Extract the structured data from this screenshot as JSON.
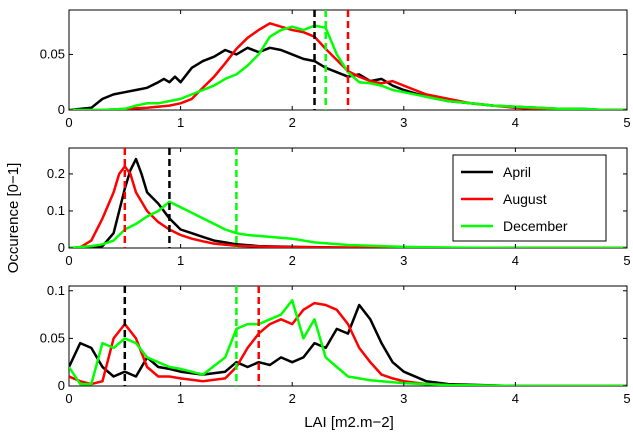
{
  "figure": {
    "xlabel": "LAI [m2.m−2]",
    "ylabel": "Occurence [0−1]"
  },
  "legend": {
    "placement": "right of middle panel",
    "items": [
      {
        "label": "April",
        "color": "#000000"
      },
      {
        "label": "August",
        "color": "#ff0000"
      },
      {
        "label": "December",
        "color": "#00ff00"
      }
    ]
  },
  "chart_data": [
    {
      "type": "line",
      "xlim": [
        0,
        5
      ],
      "ylim": [
        0,
        0.09
      ],
      "xticks": [
        "0",
        "1",
        "2",
        "3",
        "4",
        "5"
      ],
      "yticks": [
        {
          "v": 0,
          "t": "0"
        },
        {
          "v": 0.05,
          "t": "0.05"
        }
      ],
      "series": [
        {
          "name": "April",
          "color": "#000000",
          "x": [
            0,
            0.2,
            0.3,
            0.4,
            0.5,
            0.6,
            0.7,
            0.8,
            0.85,
            0.9,
            0.95,
            1.0,
            1.1,
            1.2,
            1.3,
            1.4,
            1.5,
            1.6,
            1.7,
            1.8,
            1.9,
            2.0,
            2.1,
            2.2,
            2.3,
            2.4,
            2.5,
            2.6,
            2.7,
            2.8,
            2.9,
            3.0,
            3.2,
            3.4,
            3.6,
            3.8,
            4.0,
            4.2,
            4.4,
            4.6,
            4.8,
            5.0
          ],
          "y": [
            0,
            0.002,
            0.01,
            0.014,
            0.016,
            0.018,
            0.02,
            0.025,
            0.028,
            0.025,
            0.03,
            0.025,
            0.038,
            0.044,
            0.048,
            0.054,
            0.05,
            0.056,
            0.052,
            0.056,
            0.054,
            0.05,
            0.046,
            0.044,
            0.038,
            0.034,
            0.03,
            0.032,
            0.026,
            0.028,
            0.022,
            0.018,
            0.012,
            0.008,
            0.006,
            0.004,
            0.003,
            0.002,
            0.001,
            0.001,
            0,
            0
          ]
        },
        {
          "name": "August",
          "color": "#ff0000",
          "x": [
            0,
            0.3,
            0.5,
            0.7,
            0.9,
            1.0,
            1.1,
            1.2,
            1.3,
            1.4,
            1.5,
            1.6,
            1.7,
            1.8,
            1.9,
            2.0,
            2.1,
            2.2,
            2.3,
            2.4,
            2.5,
            2.6,
            2.7,
            2.8,
            2.9,
            3.0,
            3.2,
            3.4,
            3.6,
            3.8,
            4.0,
            4.2,
            4.4,
            4.6,
            4.8,
            5.0
          ],
          "y": [
            0,
            0,
            0.001,
            0.002,
            0.004,
            0.006,
            0.01,
            0.02,
            0.03,
            0.042,
            0.055,
            0.065,
            0.072,
            0.078,
            0.075,
            0.072,
            0.07,
            0.066,
            0.055,
            0.045,
            0.035,
            0.03,
            0.026,
            0.024,
            0.026,
            0.022,
            0.014,
            0.01,
            0.006,
            0.004,
            0.002,
            0.001,
            0.001,
            0,
            0,
            0
          ]
        },
        {
          "name": "December",
          "color": "#00ff00",
          "x": [
            0,
            0.3,
            0.5,
            0.6,
            0.7,
            0.8,
            0.9,
            1.0,
            1.1,
            1.2,
            1.3,
            1.4,
            1.5,
            1.6,
            1.7,
            1.8,
            1.9,
            2.0,
            2.1,
            2.2,
            2.3,
            2.4,
            2.5,
            2.6,
            2.7,
            2.8,
            2.9,
            3.0,
            3.2,
            3.4,
            3.6,
            3.8,
            4.0,
            4.2,
            4.4,
            4.6,
            4.8,
            5.0
          ],
          "y": [
            0,
            0,
            0.001,
            0.004,
            0.006,
            0.006,
            0.008,
            0.01,
            0.014,
            0.018,
            0.022,
            0.028,
            0.032,
            0.04,
            0.05,
            0.066,
            0.072,
            0.075,
            0.072,
            0.076,
            0.074,
            0.05,
            0.034,
            0.025,
            0.024,
            0.022,
            0.018,
            0.016,
            0.012,
            0.008,
            0.006,
            0.004,
            0.003,
            0.002,
            0.001,
            0.001,
            0,
            0
          ]
        }
      ],
      "vlines": [
        {
          "series": "April",
          "x": 2.2,
          "color": "#000000"
        },
        {
          "series": "August",
          "x": 2.5,
          "color": "#ff0000"
        },
        {
          "series": "December",
          "x": 2.3,
          "color": "#00ff00"
        }
      ]
    },
    {
      "type": "line",
      "xlim": [
        0,
        5
      ],
      "ylim": [
        0,
        0.27
      ],
      "xticks": [
        "0",
        "1",
        "2",
        "3",
        "4",
        "5"
      ],
      "yticks": [
        {
          "v": 0,
          "t": "0"
        },
        {
          "v": 0.1,
          "t": "0.1"
        },
        {
          "v": 0.2,
          "t": "0.2"
        }
      ],
      "series": [
        {
          "name": "April",
          "color": "#000000",
          "x": [
            0,
            0.2,
            0.3,
            0.4,
            0.45,
            0.5,
            0.55,
            0.6,
            0.65,
            0.7,
            0.8,
            0.9,
            1.0,
            1.1,
            1.2,
            1.3,
            1.4,
            1.5,
            1.7,
            2.0,
            2.5,
            3.0,
            3.5,
            4.0,
            4.5,
            5.0
          ],
          "y": [
            0,
            0.002,
            0.005,
            0.04,
            0.1,
            0.16,
            0.21,
            0.24,
            0.2,
            0.15,
            0.12,
            0.08,
            0.05,
            0.04,
            0.03,
            0.02,
            0.015,
            0.01,
            0.005,
            0.003,
            0.001,
            0,
            0,
            0,
            0,
            0
          ]
        },
        {
          "name": "August",
          "color": "#ff0000",
          "x": [
            0,
            0.1,
            0.2,
            0.3,
            0.4,
            0.45,
            0.5,
            0.55,
            0.6,
            0.7,
            0.8,
            0.9,
            1.0,
            1.1,
            1.2,
            1.3,
            1.5,
            1.7,
            2.0,
            2.5,
            3.0,
            3.5,
            4.0,
            4.5,
            5.0
          ],
          "y": [
            0,
            0.002,
            0.02,
            0.08,
            0.15,
            0.2,
            0.22,
            0.2,
            0.15,
            0.1,
            0.07,
            0.05,
            0.035,
            0.025,
            0.018,
            0.012,
            0.006,
            0.004,
            0.002,
            0.001,
            0,
            0,
            0,
            0,
            0
          ]
        },
        {
          "name": "December",
          "color": "#00ff00",
          "x": [
            0,
            0.2,
            0.3,
            0.4,
            0.5,
            0.6,
            0.7,
            0.8,
            0.9,
            1.0,
            1.1,
            1.2,
            1.3,
            1.4,
            1.5,
            1.6,
            1.8,
            2.0,
            2.2,
            2.5,
            3.0,
            3.5,
            4.0,
            4.5,
            5.0
          ],
          "y": [
            0,
            0.005,
            0.01,
            0.02,
            0.05,
            0.065,
            0.085,
            0.1,
            0.125,
            0.11,
            0.095,
            0.08,
            0.065,
            0.05,
            0.04,
            0.035,
            0.03,
            0.025,
            0.015,
            0.008,
            0.003,
            0.001,
            0,
            0,
            0
          ]
        }
      ],
      "vlines": [
        {
          "series": "April",
          "x": 0.9,
          "color": "#000000"
        },
        {
          "series": "August",
          "x": 0.5,
          "color": "#ff0000"
        },
        {
          "series": "December",
          "x": 1.5,
          "color": "#00ff00"
        }
      ]
    },
    {
      "type": "line",
      "xlim": [
        0,
        5
      ],
      "ylim": [
        0,
        0.105
      ],
      "xticks": [
        "0",
        "1",
        "2",
        "3",
        "4",
        "5"
      ],
      "yticks": [
        {
          "v": 0,
          "t": "0"
        },
        {
          "v": 0.05,
          "t": "0.05"
        },
        {
          "v": 0.1,
          "t": "0.1"
        }
      ],
      "series": [
        {
          "name": "April",
          "color": "#000000",
          "x": [
            0,
            0.1,
            0.2,
            0.3,
            0.4,
            0.5,
            0.6,
            0.7,
            0.8,
            0.9,
            1.0,
            1.2,
            1.4,
            1.5,
            1.6,
            1.7,
            1.8,
            1.9,
            2.0,
            2.1,
            2.2,
            2.3,
            2.4,
            2.5,
            2.6,
            2.7,
            2.8,
            2.9,
            3.0,
            3.2,
            3.4,
            4.0,
            5.0
          ],
          "y": [
            0.02,
            0.045,
            0.04,
            0.02,
            0.01,
            0.015,
            0.01,
            0.03,
            0.02,
            0.018,
            0.015,
            0.012,
            0.015,
            0.025,
            0.02,
            0.025,
            0.022,
            0.03,
            0.025,
            0.03,
            0.045,
            0.04,
            0.06,
            0.055,
            0.085,
            0.07,
            0.045,
            0.025,
            0.015,
            0.005,
            0.002,
            0,
            0
          ]
        },
        {
          "name": "August",
          "color": "#ff0000",
          "x": [
            0,
            0.1,
            0.2,
            0.3,
            0.4,
            0.5,
            0.6,
            0.7,
            0.8,
            0.9,
            1.0,
            1.2,
            1.4,
            1.5,
            1.6,
            1.7,
            1.8,
            1.9,
            2.0,
            2.1,
            2.2,
            2.3,
            2.4,
            2.5,
            2.6,
            2.7,
            2.8,
            2.9,
            3.0,
            3.2,
            3.4,
            4.0,
            5.0
          ],
          "y": [
            0.01,
            0.005,
            0.002,
            0.005,
            0.05,
            0.065,
            0.05,
            0.02,
            0.01,
            0.01,
            0.008,
            0.005,
            0.008,
            0.02,
            0.04,
            0.055,
            0.065,
            0.07,
            0.065,
            0.08,
            0.087,
            0.085,
            0.08,
            0.065,
            0.04,
            0.025,
            0.012,
            0.008,
            0.005,
            0.002,
            0.001,
            0,
            0
          ]
        },
        {
          "name": "December",
          "color": "#00ff00",
          "x": [
            0,
            0.1,
            0.2,
            0.3,
            0.4,
            0.5,
            0.6,
            0.7,
            0.8,
            0.9,
            1.0,
            1.2,
            1.4,
            1.5,
            1.6,
            1.7,
            1.8,
            1.9,
            2.0,
            2.1,
            2.2,
            2.3,
            2.4,
            2.5,
            2.6,
            2.7,
            2.8,
            2.9,
            3.0,
            3.2,
            3.4,
            4.0,
            5.0
          ],
          "y": [
            0.02,
            0.002,
            0.002,
            0.045,
            0.04,
            0.05,
            0.045,
            0.03,
            0.025,
            0.02,
            0.018,
            0.012,
            0.03,
            0.06,
            0.065,
            0.065,
            0.07,
            0.075,
            0.09,
            0.05,
            0.07,
            0.03,
            0.02,
            0.01,
            0.008,
            0.006,
            0.005,
            0.004,
            0.003,
            0.002,
            0.001,
            0,
            0
          ]
        }
      ],
      "vlines": [
        {
          "series": "April",
          "x": 0.5,
          "color": "#000000"
        },
        {
          "series": "August",
          "x": 1.7,
          "color": "#ff0000"
        },
        {
          "series": "December",
          "x": 1.5,
          "color": "#00ff00"
        }
      ]
    }
  ]
}
